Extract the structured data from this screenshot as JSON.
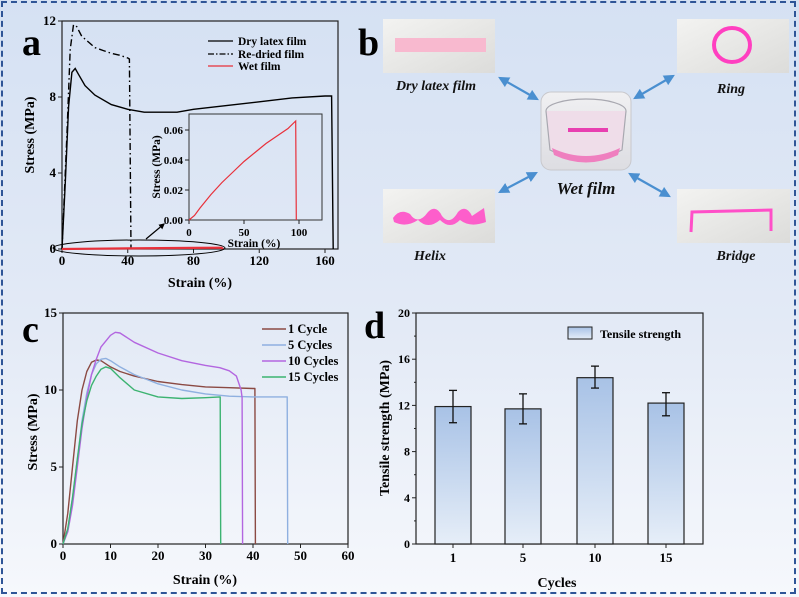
{
  "figure": {
    "panel_labels": [
      "a",
      "b",
      "c",
      "d"
    ],
    "border_color": "#2f5597"
  },
  "chart_data": [
    {
      "panel": "a",
      "type": "line",
      "title": "",
      "xlabel": "Strain (%)",
      "ylabel": "Stress (MPa)",
      "xlim": [
        0,
        168
      ],
      "ylim": [
        0,
        12
      ],
      "xticks": [
        0,
        40,
        80,
        120,
        160
      ],
      "yticks": [
        0,
        4,
        8,
        12
      ],
      "legend_position": "top-right",
      "series": [
        {
          "name": "Dry latex film",
          "style": "solid",
          "color": "#000000",
          "x": [
            0,
            2,
            4,
            6,
            8,
            10,
            14,
            20,
            30,
            40,
            50,
            60,
            70,
            80,
            100,
            120,
            140,
            160,
            164,
            165
          ],
          "y": [
            0,
            3.5,
            7.5,
            9.3,
            9.5,
            9.2,
            8.6,
            8.1,
            7.6,
            7.35,
            7.2,
            7.2,
            7.2,
            7.35,
            7.55,
            7.75,
            7.95,
            8.05,
            8.05,
            0
          ]
        },
        {
          "name": "Re-dried film",
          "style": "dashdot",
          "color": "#000000",
          "x": [
            0,
            3,
            5,
            7,
            9,
            12,
            16,
            20,
            25,
            30,
            35,
            40,
            41,
            42
          ],
          "y": [
            0,
            6,
            10.5,
            11.8,
            11.7,
            11.2,
            10.9,
            10.6,
            10.45,
            10.3,
            10.2,
            10.05,
            10.0,
            0
          ]
        },
        {
          "name": "Wet film",
          "style": "solid",
          "color": "#e8303a",
          "x": [
            0,
            20,
            40,
            60,
            80,
            97,
            98
          ],
          "y": [
            0,
            0.017,
            0.032,
            0.045,
            0.056,
            0.066,
            0
          ]
        }
      ],
      "annotation": "ellipse highlighting wet film curve with arrow to inset",
      "inset": {
        "xlabel": "Strain (%)",
        "ylabel": "Stress (MPa)",
        "xlim": [
          0,
          120
        ],
        "ylim": [
          0,
          0.07
        ],
        "xticks": [
          0,
          50,
          100
        ],
        "yticks": [
          "0.00",
          "0.02",
          "0.04",
          "0.06"
        ],
        "series": [
          {
            "name": "Wet film",
            "color": "#e8303a",
            "x": [
              0,
              5,
              10,
              20,
              30,
              40,
              50,
              60,
              70,
              80,
              90,
              97,
              97.5
            ],
            "y": [
              0,
              0.003,
              0.008,
              0.017,
              0.025,
              0.032,
              0.039,
              0.045,
              0.051,
              0.056,
              0.061,
              0.066,
              0
            ]
          }
        ]
      }
    },
    {
      "panel": "c",
      "type": "line",
      "title": "",
      "xlabel": "Strain (%)",
      "ylabel": "Stress (MPa)",
      "xlim": [
        0,
        60
      ],
      "ylim": [
        0,
        15
      ],
      "xticks": [
        0,
        10,
        20,
        30,
        40,
        50,
        60
      ],
      "yticks": [
        0,
        5,
        10,
        15
      ],
      "legend_position": "top-right",
      "series": [
        {
          "name": "1 Cycle",
          "color": "#8b4a43",
          "x": [
            0,
            1,
            2,
            3,
            4,
            5,
            6,
            7,
            8,
            10,
            12,
            15,
            20,
            25,
            30,
            35,
            40,
            40.4,
            40.5
          ],
          "y": [
            0,
            2,
            5,
            8,
            10,
            11.2,
            11.8,
            11.95,
            11.9,
            11.5,
            11.2,
            10.9,
            10.55,
            10.35,
            10.2,
            10.15,
            10.1,
            10.1,
            0
          ]
        },
        {
          "name": "5 Cycles",
          "color": "#8fb0e0",
          "x": [
            0,
            1,
            2,
            3,
            4,
            5,
            6,
            7,
            8,
            9,
            10,
            12,
            15,
            20,
            25,
            30,
            35,
            40,
            45,
            47.2,
            47.3
          ],
          "y": [
            0,
            1,
            3,
            5.5,
            8,
            9.8,
            11,
            11.7,
            12.0,
            12.05,
            11.9,
            11.5,
            11.0,
            10.4,
            10.0,
            9.75,
            9.6,
            9.55,
            9.55,
            9.55,
            0
          ]
        },
        {
          "name": "10 Cycles",
          "color": "#b366e0",
          "x": [
            0,
            1,
            2,
            3,
            4,
            5,
            6,
            7,
            8,
            10,
            11,
            12,
            13,
            15,
            20,
            25,
            30,
            33,
            35,
            36.5,
            37.5,
            37.7,
            37.8
          ],
          "y": [
            0,
            0.8,
            2.5,
            5,
            7.5,
            9.5,
            11,
            12,
            12.8,
            13.55,
            13.75,
            13.7,
            13.5,
            13.1,
            12.4,
            11.9,
            11.6,
            11.45,
            11.25,
            10.9,
            10.0,
            9.5,
            0
          ]
        },
        {
          "name": "15 Cycles",
          "color": "#3cb371",
          "x": [
            0,
            1,
            2,
            3,
            4,
            5,
            6,
            7,
            8,
            9,
            10,
            12,
            15,
            20,
            25,
            30,
            33.1,
            33.2
          ],
          "y": [
            0,
            1,
            3,
            5.5,
            7.8,
            9.3,
            10.3,
            10.9,
            11.35,
            11.5,
            11.4,
            10.8,
            10.0,
            9.55,
            9.45,
            9.5,
            9.55,
            0
          ]
        }
      ]
    },
    {
      "panel": "d",
      "type": "bar",
      "title": "",
      "xlabel": "Cycles",
      "ylabel": "Tensile strength (MPa)",
      "categories": [
        "1",
        "5",
        "10",
        "15"
      ],
      "ylim": [
        0,
        20
      ],
      "yticks": [
        0,
        4,
        8,
        12,
        16,
        20
      ],
      "legend_position": "top-right",
      "series": [
        {
          "name": "Tensile strength",
          "values": [
            11.9,
            11.7,
            14.4,
            12.2
          ],
          "error_low": [
            10.5,
            10.4,
            13.5,
            11.1
          ],
          "error_high": [
            13.3,
            13.0,
            15.4,
            13.1
          ]
        }
      ]
    }
  ],
  "panel_b": {
    "captions": {
      "dry": "Dry latex film",
      "ring": "Ring",
      "wet": "Wet film",
      "helix": "Helix",
      "bridge": "Bridge"
    },
    "arrow_color": "#4a8fd0",
    "film_color": "#ff3fc0"
  }
}
